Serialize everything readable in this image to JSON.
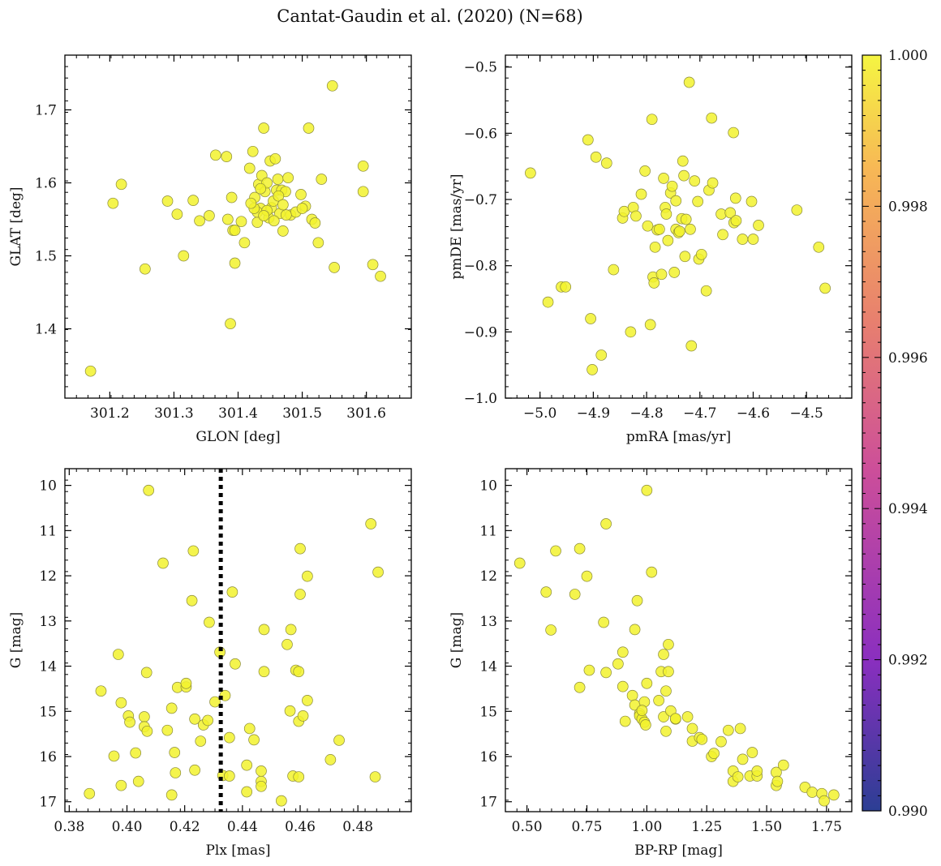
{
  "figure": {
    "title": "Cantat-Gaudin et al. (2020) (N=68)",
    "point_color": "#f2f22e",
    "point_edge": "#8a8a3a"
  },
  "colorbar": {
    "min": 0.99,
    "max": 1.0,
    "ticks": [
      "0.990",
      "0.992",
      "0.994",
      "0.996",
      "0.998",
      "1.000"
    ],
    "colors": [
      "#2c3e94",
      "#8a2fbf",
      "#cc4e9a",
      "#e8806e",
      "#f7b855",
      "#f5f542"
    ]
  },
  "chart_data": [
    {
      "type": "scatter",
      "name": "sky",
      "xlabel": "GLON [deg]",
      "ylabel": "GLAT [deg]",
      "xlim": [
        301.13,
        301.67
      ],
      "ylim": [
        1.305,
        1.775
      ],
      "xticks": [
        301.2,
        301.3,
        301.4,
        301.5,
        301.6
      ],
      "xticklabels": [
        "301.2",
        "301.3",
        "301.4",
        "301.5",
        "301.6"
      ],
      "yticks": [
        1.4,
        1.5,
        1.6,
        1.7
      ],
      "yticklabels": [
        "1.4",
        "1.5",
        "1.6",
        "1.7"
      ],
      "points": [
        [
          301.17,
          1.342
        ],
        [
          301.205,
          1.572
        ],
        [
          301.218,
          1.598
        ],
        [
          301.255,
          1.482
        ],
        [
          301.29,
          1.575
        ],
        [
          301.305,
          1.557
        ],
        [
          301.315,
          1.5
        ],
        [
          301.33,
          1.576
        ],
        [
          301.34,
          1.548
        ],
        [
          301.355,
          1.555
        ],
        [
          301.365,
          1.638
        ],
        [
          301.382,
          1.636
        ],
        [
          301.384,
          1.55
        ],
        [
          301.39,
          1.58
        ],
        [
          301.392,
          1.535
        ],
        [
          301.388,
          1.407
        ],
        [
          301.395,
          1.49
        ],
        [
          301.405,
          1.547
        ],
        [
          301.41,
          1.518
        ],
        [
          301.418,
          1.62
        ],
        [
          301.423,
          1.643
        ],
        [
          301.426,
          1.58
        ],
        [
          301.43,
          1.546
        ],
        [
          301.432,
          1.598
        ],
        [
          301.435,
          1.565
        ],
        [
          301.437,
          1.61
        ],
        [
          301.44,
          1.675
        ],
        [
          301.442,
          1.588
        ],
        [
          301.445,
          1.6
        ],
        [
          301.448,
          1.552
        ],
        [
          301.45,
          1.63
        ],
        [
          301.452,
          1.566
        ],
        [
          301.455,
          1.575
        ],
        [
          301.458,
          1.633
        ],
        [
          301.46,
          1.59
        ],
        [
          301.462,
          1.605
        ],
        [
          301.465,
          1.558
        ],
        [
          301.468,
          1.59
        ],
        [
          301.47,
          1.534
        ],
        [
          301.474,
          1.588
        ],
        [
          301.478,
          1.607
        ],
        [
          301.482,
          1.556
        ],
        [
          301.49,
          1.56
        ],
        [
          301.498,
          1.584
        ],
        [
          301.505,
          1.568
        ],
        [
          301.51,
          1.675
        ],
        [
          301.515,
          1.55
        ],
        [
          301.52,
          1.545
        ],
        [
          301.525,
          1.518
        ],
        [
          301.53,
          1.605
        ],
        [
          301.547,
          1.733
        ],
        [
          301.55,
          1.484
        ],
        [
          301.595,
          1.623
        ],
        [
          301.595,
          1.588
        ],
        [
          301.61,
          1.488
        ],
        [
          301.622,
          1.472
        ],
        [
          301.43,
          1.56
        ],
        [
          301.445,
          1.562
        ],
        [
          301.456,
          1.548
        ],
        [
          301.475,
          1.556
        ],
        [
          301.395,
          1.535
        ],
        [
          301.425,
          1.565
        ],
        [
          301.44,
          1.555
        ],
        [
          301.5,
          1.565
        ],
        [
          301.435,
          1.592
        ],
        [
          301.463,
          1.582
        ],
        [
          301.42,
          1.572
        ],
        [
          301.47,
          1.57
        ]
      ]
    },
    {
      "type": "scatter",
      "name": "proper-motion",
      "xlabel": "pmRA [mas/yr]",
      "ylabel": "pmDE [mas/yr]",
      "xlim": [
        -5.065,
        -4.415
      ],
      "ylim": [
        -1.0,
        -0.482
      ],
      "xticks": [
        -5.0,
        -4.9,
        -4.8,
        -4.7,
        -4.6,
        -4.5
      ],
      "xticklabels": [
        "−5.0",
        "−4.9",
        "−4.8",
        "−4.7",
        "−4.6",
        "−4.5"
      ],
      "yticks": [
        -1.0,
        -0.9,
        -0.8,
        -0.7,
        -0.6,
        -0.5
      ],
      "yticklabels": [
        "−1.0",
        "−0.9",
        "−0.8",
        "−0.7",
        "−0.6",
        "−0.5"
      ],
      "points": [
        [
          -5.018,
          -0.66
        ],
        [
          -4.985,
          -0.855
        ],
        [
          -4.96,
          -0.832
        ],
        [
          -4.952,
          -0.832
        ],
        [
          -4.91,
          -0.61
        ],
        [
          -4.905,
          -0.88
        ],
        [
          -4.902,
          -0.957
        ],
        [
          -4.895,
          -0.636
        ],
        [
          -4.885,
          -0.935
        ],
        [
          -4.875,
          -0.645
        ],
        [
          -4.862,
          -0.806
        ],
        [
          -4.845,
          -0.728
        ],
        [
          -4.842,
          -0.718
        ],
        [
          -4.83,
          -0.9
        ],
        [
          -4.825,
          -0.712
        ],
        [
          -4.82,
          -0.725
        ],
        [
          -4.81,
          -0.692
        ],
        [
          -4.803,
          -0.657
        ],
        [
          -4.798,
          -0.74
        ],
        [
          -4.793,
          -0.889
        ],
        [
          -4.79,
          -0.579
        ],
        [
          -4.788,
          -0.817
        ],
        [
          -4.786,
          -0.826
        ],
        [
          -4.784,
          -0.772
        ],
        [
          -4.78,
          -0.746
        ],
        [
          -4.776,
          -0.745
        ],
        [
          -4.772,
          -0.813
        ],
        [
          -4.768,
          -0.668
        ],
        [
          -4.765,
          -0.712
        ],
        [
          -4.763,
          -0.722
        ],
        [
          -4.76,
          -0.762
        ],
        [
          -4.755,
          -0.69
        ],
        [
          -4.752,
          -0.68
        ],
        [
          -4.748,
          -0.81
        ],
        [
          -4.745,
          -0.745
        ],
        [
          -4.74,
          -0.75
        ],
        [
          -4.738,
          -0.748
        ],
        [
          -4.734,
          -0.729
        ],
        [
          -4.732,
          -0.642
        ],
        [
          -4.73,
          -0.664
        ],
        [
          -4.728,
          -0.786
        ],
        [
          -4.726,
          -0.73
        ],
        [
          -4.72,
          -0.523
        ],
        [
          -4.718,
          -0.745
        ],
        [
          -4.716,
          -0.921
        ],
        [
          -4.71,
          -0.672
        ],
        [
          -4.704,
          -0.703
        ],
        [
          -4.702,
          -0.79
        ],
        [
          -4.697,
          -0.783
        ],
        [
          -4.688,
          -0.838
        ],
        [
          -4.683,
          -0.686
        ],
        [
          -4.678,
          -0.577
        ],
        [
          -4.676,
          -0.675
        ],
        [
          -4.66,
          -0.722
        ],
        [
          -4.657,
          -0.753
        ],
        [
          -4.643,
          -0.72
        ],
        [
          -4.637,
          -0.599
        ],
        [
          -4.636,
          -0.735
        ],
        [
          -4.633,
          -0.698
        ],
        [
          -4.632,
          -0.732
        ],
        [
          -4.62,
          -0.76
        ],
        [
          -4.603,
          -0.703
        ],
        [
          -4.6,
          -0.76
        ],
        [
          -4.59,
          -0.739
        ],
        [
          -4.518,
          -0.716
        ],
        [
          -4.477,
          -0.772
        ],
        [
          -4.465,
          -0.834
        ],
        [
          -4.745,
          -0.702
        ]
      ]
    },
    {
      "type": "scatter",
      "name": "plx-vs-g",
      "xlabel": "Plx [mas]",
      "ylabel": "G [mag]",
      "xlim": [
        0.3785,
        0.4985
      ],
      "ylim": [
        17.22,
        9.63
      ],
      "xticks": [
        0.38,
        0.4,
        0.42,
        0.44,
        0.46,
        0.48
      ],
      "xticklabels": [
        "0.38",
        "0.40",
        "0.42",
        "0.44",
        "0.46",
        "0.48"
      ],
      "yticks": [
        10,
        11,
        12,
        13,
        14,
        15,
        16,
        17
      ],
      "yticklabels": [
        "10",
        "11",
        "12",
        "13",
        "14",
        "15",
        "16",
        "17"
      ],
      "vline": 0.4325,
      "points": [
        [
          0.387,
          16.82
        ],
        [
          0.391,
          14.55
        ],
        [
          0.3955,
          15.99
        ],
        [
          0.397,
          13.74
        ],
        [
          0.398,
          14.81
        ],
        [
          0.398,
          16.64
        ],
        [
          0.4005,
          15.1
        ],
        [
          0.401,
          15.24
        ],
        [
          0.403,
          15.92
        ],
        [
          0.404,
          16.55
        ],
        [
          0.406,
          15.12
        ],
        [
          0.406,
          15.34
        ],
        [
          0.4068,
          14.14
        ],
        [
          0.407,
          15.44
        ],
        [
          0.4075,
          10.11
        ],
        [
          0.4125,
          11.72
        ],
        [
          0.414,
          15.42
        ],
        [
          0.4155,
          16.85
        ],
        [
          0.4155,
          14.93
        ],
        [
          0.4165,
          15.91
        ],
        [
          0.4168,
          16.36
        ],
        [
          0.4175,
          14.47
        ],
        [
          0.4205,
          14.46
        ],
        [
          0.4205,
          14.38
        ],
        [
          0.4225,
          12.55
        ],
        [
          0.423,
          11.45
        ],
        [
          0.4235,
          15.17
        ],
        [
          0.4235,
          16.3
        ],
        [
          0.4255,
          15.66
        ],
        [
          0.4265,
          15.3
        ],
        [
          0.428,
          15.2
        ],
        [
          0.4285,
          13.03
        ],
        [
          0.4305,
          14.79
        ],
        [
          0.4322,
          13.69
        ],
        [
          0.4332,
          16.42
        ],
        [
          0.434,
          14.65
        ],
        [
          0.4355,
          15.58
        ],
        [
          0.4355,
          16.43
        ],
        [
          0.4365,
          12.36
        ],
        [
          0.4375,
          13.95
        ],
        [
          0.4415,
          16.19
        ],
        [
          0.4415,
          16.78
        ],
        [
          0.4425,
          15.38
        ],
        [
          0.444,
          15.63
        ],
        [
          0.4465,
          16.55
        ],
        [
          0.4465,
          16.66
        ],
        [
          0.4465,
          16.32
        ],
        [
          0.4475,
          13.19
        ],
        [
          0.4475,
          14.12
        ],
        [
          0.4535,
          16.98
        ],
        [
          0.4555,
          13.52
        ],
        [
          0.4565,
          14.99
        ],
        [
          0.4568,
          13.19
        ],
        [
          0.4575,
          16.43
        ],
        [
          0.4585,
          14.09
        ],
        [
          0.4595,
          16.45
        ],
        [
          0.4595,
          14.12
        ],
        [
          0.4595,
          15.22
        ],
        [
          0.46,
          11.4
        ],
        [
          0.46,
          12.41
        ],
        [
          0.461,
          15.1
        ],
        [
          0.4625,
          14.76
        ],
        [
          0.4625,
          12.01
        ],
        [
          0.4705,
          16.07
        ],
        [
          0.4735,
          15.64
        ],
        [
          0.4845,
          10.85
        ],
        [
          0.486,
          16.45
        ],
        [
          0.487,
          11.92
        ]
      ]
    },
    {
      "type": "scatter",
      "name": "cmd",
      "xlabel": "BP-RP [mag]",
      "ylabel": "G [mag]",
      "xlim": [
        0.41,
        1.855
      ],
      "ylim": [
        17.22,
        9.63
      ],
      "xticks": [
        0.5,
        0.75,
        1.0,
        1.25,
        1.5,
        1.75
      ],
      "xticklabels": [
        "0.50",
        "0.75",
        "1.00",
        "1.25",
        "1.50",
        "1.75"
      ],
      "yticks": [
        10,
        11,
        12,
        13,
        14,
        15,
        16,
        17
      ],
      "yticklabels": [
        "10",
        "11",
        "12",
        "13",
        "14",
        "15",
        "16",
        "17"
      ],
      "points": [
        [
          0.47,
          11.72
        ],
        [
          0.58,
          12.36
        ],
        [
          0.6,
          13.2
        ],
        [
          0.62,
          11.45
        ],
        [
          0.7,
          12.41
        ],
        [
          0.72,
          11.4
        ],
        [
          0.72,
          14.47
        ],
        [
          0.75,
          12.01
        ],
        [
          0.76,
          14.09
        ],
        [
          0.82,
          13.03
        ],
        [
          0.83,
          10.85
        ],
        [
          0.83,
          14.14
        ],
        [
          0.88,
          13.95
        ],
        [
          0.9,
          13.69
        ],
        [
          0.9,
          14.45
        ],
        [
          0.91,
          15.22
        ],
        [
          0.94,
          14.65
        ],
        [
          0.95,
          14.86
        ],
        [
          0.95,
          13.19
        ],
        [
          0.96,
          12.55
        ],
        [
          0.97,
          15.05
        ],
        [
          0.97,
          15.1
        ],
        [
          0.98,
          15.17
        ],
        [
          0.99,
          15.24
        ],
        [
          0.99,
          14.79
        ],
        [
          0.995,
          15.3
        ],
        [
          1.0,
          14.38
        ],
        [
          1.0,
          10.11
        ],
        [
          1.02,
          11.92
        ],
        [
          1.05,
          14.76
        ],
        [
          1.06,
          14.12
        ],
        [
          1.07,
          13.74
        ],
        [
          1.07,
          15.12
        ],
        [
          1.08,
          15.44
        ],
        [
          1.08,
          14.55
        ],
        [
          1.09,
          14.12
        ],
        [
          1.09,
          13.52
        ],
        [
          1.1,
          14.99
        ],
        [
          1.12,
          15.17
        ],
        [
          1.17,
          15.12
        ],
        [
          1.19,
          15.38
        ],
        [
          1.19,
          15.66
        ],
        [
          1.22,
          15.58
        ],
        [
          1.27,
          16.0
        ],
        [
          1.28,
          15.93
        ],
        [
          1.31,
          15.67
        ],
        [
          1.34,
          15.42
        ],
        [
          1.36,
          16.32
        ],
        [
          1.36,
          16.55
        ],
        [
          1.38,
          16.45
        ],
        [
          1.39,
          15.38
        ],
        [
          1.4,
          16.06
        ],
        [
          1.43,
          16.43
        ],
        [
          1.44,
          15.91
        ],
        [
          1.46,
          16.43
        ],
        [
          1.46,
          16.32
        ],
        [
          1.54,
          16.35
        ],
        [
          1.54,
          16.64
        ],
        [
          1.545,
          16.55
        ],
        [
          1.57,
          16.19
        ],
        [
          1.66,
          16.68
        ],
        [
          1.69,
          16.79
        ],
        [
          1.73,
          16.82
        ],
        [
          1.74,
          16.98
        ],
        [
          1.78,
          16.85
        ],
        [
          0.98,
          14.98
        ],
        [
          1.12,
          15.16
        ],
        [
          1.23,
          15.62
        ]
      ]
    }
  ]
}
